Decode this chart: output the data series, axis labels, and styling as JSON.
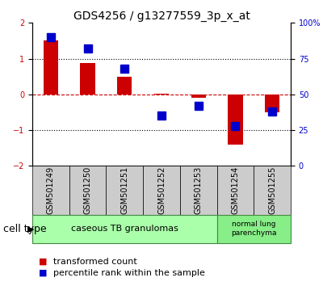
{
  "title": "GDS4256 / g13277559_3p_x_at",
  "samples": [
    "GSM501249",
    "GSM501250",
    "GSM501251",
    "GSM501252",
    "GSM501253",
    "GSM501254",
    "GSM501255"
  ],
  "red_values": [
    1.52,
    0.87,
    0.5,
    0.02,
    -0.1,
    -1.4,
    -0.5
  ],
  "blue_values": [
    90,
    82,
    68,
    35,
    42,
    28,
    38
  ],
  "ylim_left": [
    -2,
    2
  ],
  "ylim_right": [
    0,
    100
  ],
  "yticks_left": [
    -2,
    -1,
    0,
    1,
    2
  ],
  "yticks_right": [
    0,
    25,
    50,
    75,
    100
  ],
  "ytick_labels_right": [
    "0",
    "25",
    "50",
    "75",
    "100%"
  ],
  "red_color": "#cc0000",
  "blue_color": "#0000cc",
  "bar_width": 0.4,
  "blue_marker_size": 7,
  "group1_samples": [
    0,
    1,
    2,
    3,
    4
  ],
  "group2_samples": [
    5,
    6
  ],
  "group1_label": "caseous TB granulomas",
  "group2_label": "normal lung\nparenchyma",
  "group1_color": "#aaffaa",
  "group2_color": "#88ee88",
  "cell_type_label": "cell type",
  "legend1_label": "transformed count",
  "legend2_label": "percentile rank within the sample",
  "bg_color": "#ffffff",
  "plot_bg_color": "#ffffff",
  "tick_label_area_color": "#cccccc",
  "font_size_title": 10,
  "font_size_tick": 7,
  "font_size_legend": 8,
  "font_size_group": 8,
  "font_size_cell_type": 9
}
